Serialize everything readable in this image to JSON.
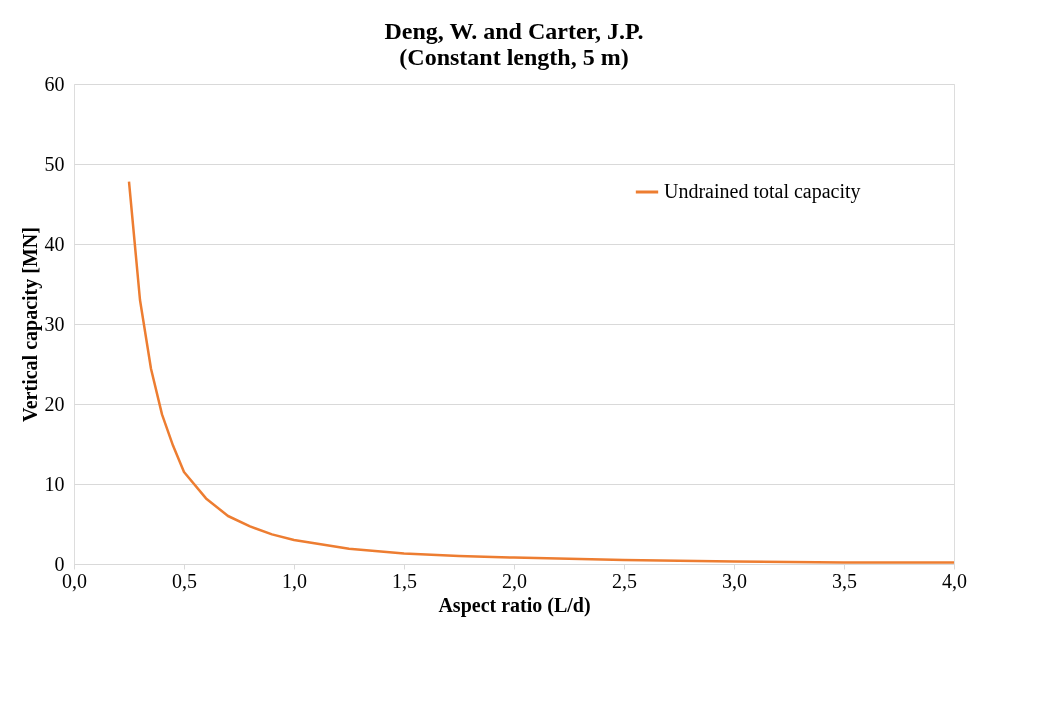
{
  "chart_data": {
    "type": "line",
    "title": "Deng, W. and Carter, J.P.\n(Constant length, 5 m)",
    "xlabel": "Aspect ratio (L/d)",
    "ylabel": "Vertical capacity [MN]",
    "x": [
      0.25,
      0.3,
      0.35,
      0.4,
      0.45,
      0.5,
      0.6,
      0.7,
      0.8,
      0.9,
      1.0,
      1.25,
      1.5,
      1.75,
      2.0,
      2.5,
      3.0,
      3.5,
      4.0
    ],
    "series": [
      {
        "name": "Undrained total capacity",
        "color": "#ed7d31",
        "values": [
          47.8,
          33,
          24.4,
          18.7,
          14.8,
          11.5,
          8.2,
          6.0,
          4.7,
          3.7,
          3.0,
          1.9,
          1.3,
          1.0,
          0.8,
          0.5,
          0.3,
          0.2,
          0.2
        ]
      }
    ],
    "xlim": [
      0,
      4
    ],
    "xticks": [
      {
        "value": 0,
        "label": "0,0"
      },
      {
        "value": 0.5,
        "label": "0,5"
      },
      {
        "value": 1,
        "label": "1,0"
      },
      {
        "value": 1.5,
        "label": "1,5"
      },
      {
        "value": 2,
        "label": "2,0"
      },
      {
        "value": 2.5,
        "label": "2,5"
      },
      {
        "value": 3,
        "label": "3,0"
      },
      {
        "value": 3.5,
        "label": "3,5"
      },
      {
        "value": 4,
        "label": "4,0"
      }
    ],
    "ylim": [
      0,
      60
    ],
    "yticks": [
      0,
      10,
      20,
      30,
      40,
      50,
      60
    ],
    "grid": "y",
    "legend": "top right",
    "marker": "none",
    "line_style": "solid"
  }
}
